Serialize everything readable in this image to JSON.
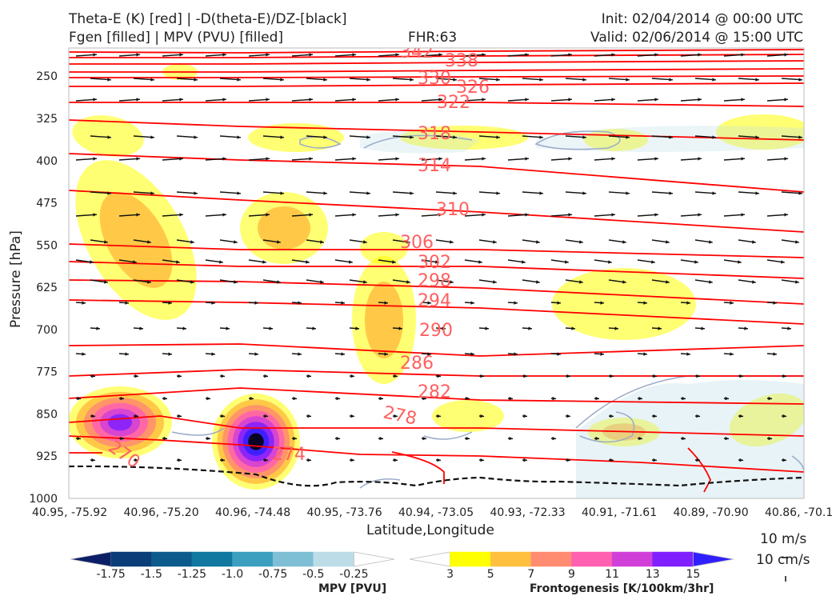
{
  "header": {
    "title_left_1": "Theta-E (K) [red] | -D(theta-E)/DZ-[black]",
    "title_left_2": "Fgen [filled] | MPV (PVU) [filled]",
    "fhr": "FHR:63",
    "init": "Init: 02/04/2014 @ 00:00 UTC",
    "valid": "Valid: 02/06/2014 @ 15:00 UTC"
  },
  "chart_data": {
    "type": "cross-section",
    "xlabel": "Latitude,Longitude",
    "ylabel": "Pressure [hPa]",
    "x_ticks": [
      "40.95, -75.92",
      "40.96, -75.20",
      "40.96, -74.48",
      "40.95, -73.76",
      "40.94, -73.05",
      "40.93, -72.33",
      "40.91, -71.61",
      "40.89, -70.90",
      "40.86, -70.1"
    ],
    "y_ticks": [
      250,
      325,
      400,
      475,
      550,
      625,
      700,
      775,
      850,
      925,
      1000
    ],
    "ylim": [
      200,
      1000
    ],
    "theta_e_contours": [
      270,
      274,
      278,
      282,
      286,
      290,
      294,
      298,
      302,
      306,
      310,
      314,
      318,
      322,
      326,
      330,
      334,
      338,
      342
    ],
    "theta_e_labels": [
      "270",
      "274",
      "278",
      "282",
      "286",
      "290",
      "294",
      "298",
      "302",
      "306",
      "310",
      "314",
      "318",
      "322",
      "326",
      "330",
      "338",
      "342"
    ],
    "colors": {
      "theta_e": "#ff0000",
      "theta_e_label": "#ff6060",
      "mpv_outline": "#9aaac8",
      "wind": "#111111"
    },
    "vector_reference": {
      "horizontal": "10 m/s",
      "vertical": "10 cm/s"
    },
    "mpv_colorbar": {
      "title": "MPV [PVU]",
      "ticks": [
        "-1.75",
        "-1.5",
        "-1.25",
        "-1.0",
        "-0.75",
        "-0.5",
        "-0.25"
      ],
      "colors": [
        "#0b1f66",
        "#0b3d78",
        "#0d5a8d",
        "#11789f",
        "#3c9fbf",
        "#7fbfd5",
        "#bcdde8",
        "#ffffff"
      ]
    },
    "fgen_colorbar": {
      "title": "Frontogenesis [K/100km/3hr]",
      "ticks": [
        "3",
        "5",
        "7",
        "9",
        "11",
        "13",
        "15"
      ],
      "colors": [
        "#ffffff",
        "#ffff00",
        "#ffc040",
        "#ff8c70",
        "#ff60b0",
        "#d040d8",
        "#8020ff",
        "#3020ff"
      ]
    }
  }
}
